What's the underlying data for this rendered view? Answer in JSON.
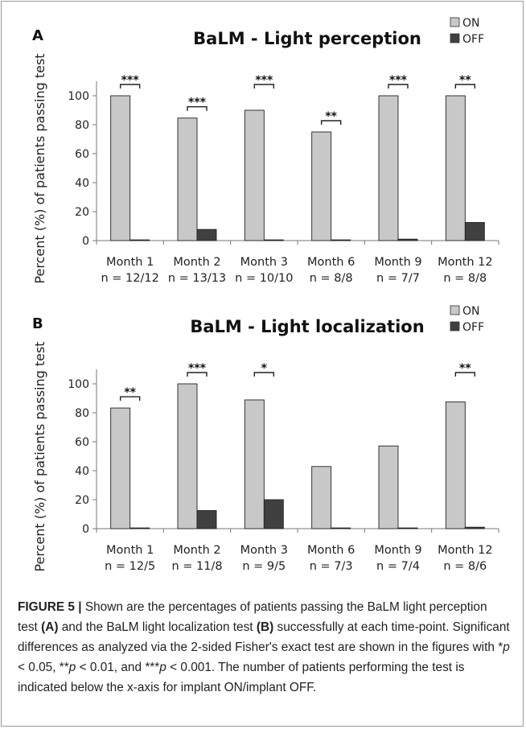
{
  "chart_data": [
    {
      "type": "bar",
      "panel_letter": "A",
      "title": "BaLM - Light perception",
      "ylabel": "Percent (%) of patients passing test",
      "ylim": [
        0,
        110
      ],
      "yticks": [
        0,
        20,
        40,
        60,
        80,
        100
      ],
      "grid": false,
      "legend_position": "top-right",
      "categories": [
        "Month 1",
        "Month 2",
        "Month 3",
        "Month 6",
        "Month 9",
        "Month 12"
      ],
      "n_labels": [
        "n = 12/12",
        "n = 13/13",
        "n = 10/10",
        "n = 8/8",
        "n = 7/7",
        "n = 8/8"
      ],
      "series": [
        {
          "name": "ON",
          "color": "#c8c8c8",
          "values": [
            100,
            84.6,
            90,
            75,
            100,
            100
          ]
        },
        {
          "name": "OFF",
          "color": "#404040",
          "values": [
            0.5,
            7.7,
            0.5,
            0.5,
            1,
            12.5
          ]
        }
      ],
      "significance": [
        "***",
        "***",
        "***",
        "**",
        "***",
        "**"
      ],
      "sig_base": [
        100,
        84.6,
        100,
        75,
        100,
        100
      ]
    },
    {
      "type": "bar",
      "panel_letter": "B",
      "title": "BaLM - Light localization",
      "ylabel": "Percent (%) of patients passing test",
      "ylim": [
        0,
        110
      ],
      "yticks": [
        0,
        20,
        40,
        60,
        80,
        100
      ],
      "grid": false,
      "legend_position": "top-right",
      "categories": [
        "Month 1",
        "Month 2",
        "Month 3",
        "Month 6",
        "Month 9",
        "Month 12"
      ],
      "n_labels": [
        "n = 12/5",
        "n = 11/8",
        "n = 9/5",
        "n = 7/3",
        "n = 7/4",
        "n = 8/6"
      ],
      "series": [
        {
          "name": "ON",
          "color": "#c8c8c8",
          "values": [
            83.3,
            100,
            88.9,
            42.9,
            57.1,
            87.5
          ]
        },
        {
          "name": "OFF",
          "color": "#404040",
          "values": [
            0.5,
            12.5,
            20,
            0.5,
            0.5,
            1
          ]
        }
      ],
      "significance": [
        "**",
        "***",
        "*",
        "",
        "",
        "**"
      ],
      "sig_base": [
        83.3,
        100,
        100,
        0,
        0,
        100
      ]
    }
  ],
  "caption": {
    "label": "FIGURE 5 |",
    "text": "Shown are the percentages of patients passing the BaLM light perception test (A) and the BaLM light localization test (B) successfully at each time-point. Significant differences as analyzed via the 2-sided Fisher's exact test are shown in the figures with *p < 0.05, **p < 0.01, and ***p < 0.001. The number of patients performing the test is indicated below the x-axis for implant ON/implant OFF."
  }
}
